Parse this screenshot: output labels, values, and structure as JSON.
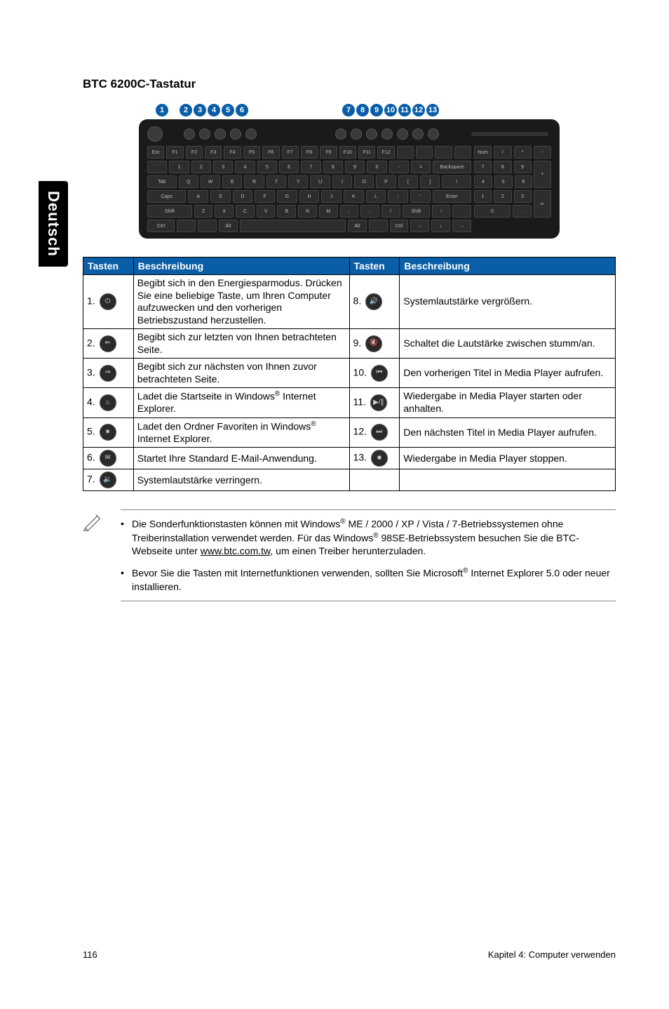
{
  "side_tab": "Deutsch",
  "title": "BTC 6200C-Tastatur",
  "badge_numbers": [
    "1",
    "2",
    "3",
    "4",
    "5",
    "6",
    "7",
    "8",
    "9",
    "10",
    "11",
    "12",
    "13"
  ],
  "table": {
    "headers": {
      "tasten": "Tasten",
      "beschreibung": "Beschreibung"
    },
    "rows_left": [
      {
        "num": "1.",
        "icon_name": "power-icon",
        "icon_glyph": "⏻",
        "desc": "Begibt sich in den Energiesparmodus. Drücken Sie eine beliebige Taste, um Ihren Computer aufzuwecken und den vorherigen Betriebszustand herzustellen."
      },
      {
        "num": "2.",
        "icon_name": "back-icon",
        "icon_glyph": "⇐",
        "desc": "Begibt sich zur letzten von Ihnen betrachteten Seite."
      },
      {
        "num": "3.",
        "icon_name": "forward-icon",
        "icon_glyph": "⇒",
        "desc": "Begibt sich zur nächsten von Ihnen zuvor betrachteten Seite."
      },
      {
        "num": "4.",
        "icon_name": "home-icon",
        "icon_glyph": "⌂",
        "desc_html": "Ladet die Startseite in Windows<span class=\"sup\">®</span> Internet Explorer."
      },
      {
        "num": "5.",
        "icon_name": "favorites-icon",
        "icon_glyph": "★",
        "desc_html": "Ladet den Ordner Favoriten in Windows<span class=\"sup\">®</span> Internet Explorer."
      },
      {
        "num": "6.",
        "icon_name": "mail-icon",
        "icon_glyph": "✉",
        "desc": "Startet Ihre Standard E-Mail-Anwendung."
      },
      {
        "num": "7.",
        "icon_name": "vol-down-icon",
        "icon_glyph": "🔉",
        "desc": "Systemlautstärke verringern."
      }
    ],
    "rows_right": [
      {
        "num": "8.",
        "icon_name": "vol-up-icon",
        "icon_glyph": "🔊",
        "desc": "Systemlautstärke vergrößern."
      },
      {
        "num": "9.",
        "icon_name": "mute-icon",
        "icon_glyph": "🔇",
        "desc": "Schaltet die Lautstärke zwischen stumm/an."
      },
      {
        "num": "10.",
        "icon_name": "prev-track-icon",
        "icon_glyph": "⏮",
        "desc": "Den vorherigen Titel in Media Player aufrufen."
      },
      {
        "num": "11.",
        "icon_name": "play-pause-icon",
        "icon_glyph": "▶/∥",
        "desc": "Wiedergabe in Media Player starten oder anhalten."
      },
      {
        "num": "12.",
        "icon_name": "next-track-icon",
        "icon_glyph": "⏭",
        "desc": "Den nächsten Titel in Media Player aufrufen."
      },
      {
        "num": "13.",
        "icon_name": "stop-icon",
        "icon_glyph": "■",
        "desc": "Wiedergabe in Media Player stoppen."
      }
    ]
  },
  "notes": [
    "Die Sonderfunktionstasten können mit Windows<span class=\"sup\">®</span> ME / 2000 / XP / Vista / 7-Betriebssystemen ohne Treiberinstallation verwendet werden. Für das Windows<span class=\"sup\">®</span> 98SE-Betriebssystem besuchen Sie die BTC-Webseite unter <span class=\"ul\">www.btc.com.tw</span>, um einen Treiber herunterzuladen.",
    "Bevor Sie die Tasten mit Internetfunktionen verwenden, sollten Sie Microsoft<span class=\"sup\">®</span> Internet Explorer 5.0 oder neuer installieren."
  ],
  "footer": {
    "page": "116",
    "chapter": "Kapitel 4: Computer verwenden"
  },
  "colors": {
    "accent": "#0a5ea8",
    "tab_bg": "#000000",
    "border": "#000000"
  }
}
